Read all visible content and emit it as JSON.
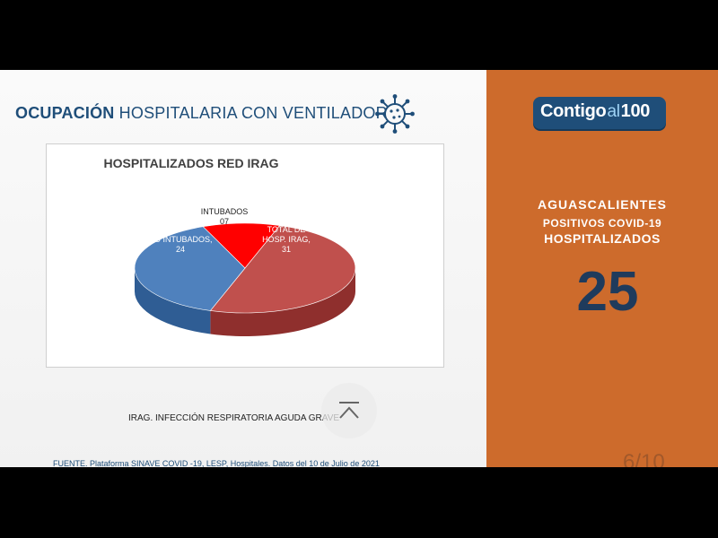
{
  "slide": {
    "title_bold": "OCUPACIÓN",
    "title_rest": " HOSPITALARIA CON VENTILADOR",
    "note": "IRAG. INFECCIÓN RESPIRATORIA AGUDA GRAVE",
    "source": "FUENTE. Plataforma SINAVE COVID -19, LESP, Hospitales. Datos del 10 de Julio de 2021",
    "page": "6/10"
  },
  "panel": {
    "logo": {
      "word": "Contigo",
      "al": "al",
      "num": "100"
    },
    "region": "AGUASCALIENTES",
    "label1": "POSITIVOS COVID-19",
    "label2": "HOSPITALIZADOS",
    "value": "25"
  },
  "colors": {
    "brand_blue": "#1f4e79",
    "panel_orange": "#cd6b2c",
    "pie_red": "#c0504d",
    "pie_blue": "#4f81bd",
    "pie_bright_red": "#ff0000"
  },
  "chart_data": {
    "type": "pie",
    "title": "HOSPITALIZADOS RED IRAG",
    "slices": [
      {
        "label": "TOTAL DE HOSP. IRAG,",
        "value_text": "31",
        "value": 31,
        "color": "#c0504d",
        "side": "#8f2f2d"
      },
      {
        "label": "NO INTUBADOS,",
        "value_text": "24",
        "value": 24,
        "color": "#4f81bd",
        "side": "#2f5d94"
      },
      {
        "label": "INTUBADOS",
        "value_text": "07",
        "value": 7,
        "color": "#ff0000",
        "side": "#b40000"
      }
    ]
  },
  "icons": [
    "virus-icon",
    "scroll-up-icon"
  ]
}
